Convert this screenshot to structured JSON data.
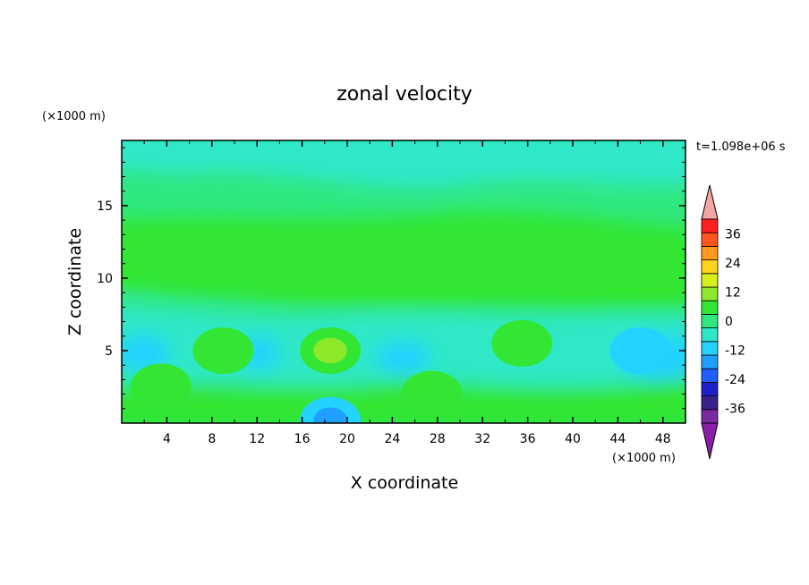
{
  "chart_data": {
    "type": "heatmap",
    "title": "zonal velocity",
    "xlabel": "X coordinate",
    "ylabel": "Z coordinate",
    "x_unit": "(×1000 m)",
    "y_unit": "(×1000 m)",
    "time_label": "t=1.098e+06 s",
    "xlim": [
      0,
      50
    ],
    "ylim": [
      0,
      19.5
    ],
    "x_ticks": [
      4,
      8,
      12,
      16,
      20,
      24,
      28,
      32,
      36,
      40,
      44,
      48
    ],
    "y_ticks": [
      5,
      10,
      15
    ],
    "colorbar": {
      "levels": [
        -42,
        -36,
        -30,
        -24,
        -18,
        -12,
        -6,
        0,
        6,
        12,
        18,
        24,
        30,
        36,
        42
      ],
      "tick_labels": [
        36,
        24,
        12,
        0,
        -12,
        -24,
        -36
      ],
      "colors": [
        "#7a2aa0",
        "#3b1f8a",
        "#1f1fc8",
        "#1f5fff",
        "#1f9fff",
        "#23d2ff",
        "#2de8c8",
        "#2fe880",
        "#33e633",
        "#8ee82a",
        "#d8f020",
        "#ffd21f",
        "#ff9a1f",
        "#ff551f",
        "#ff1f1f"
      ],
      "extend_high_color": "#f5a3a3",
      "extend_low_color": "#8a1fa8"
    },
    "features": [
      {
        "x": 18.5,
        "z": 5.0,
        "value": 11
      },
      {
        "x": 35.5,
        "z": 5.5,
        "value": 10
      },
      {
        "x": 9.0,
        "z": 5.0,
        "value": 8
      },
      {
        "x": 27.5,
        "z": 2.0,
        "value": 8
      },
      {
        "x": 3.5,
        "z": 2.5,
        "value": 7
      },
      {
        "x": 18.5,
        "z": 0.2,
        "value": -12
      },
      {
        "x": 46.0,
        "z": 5.0,
        "value": -10
      }
    ]
  }
}
